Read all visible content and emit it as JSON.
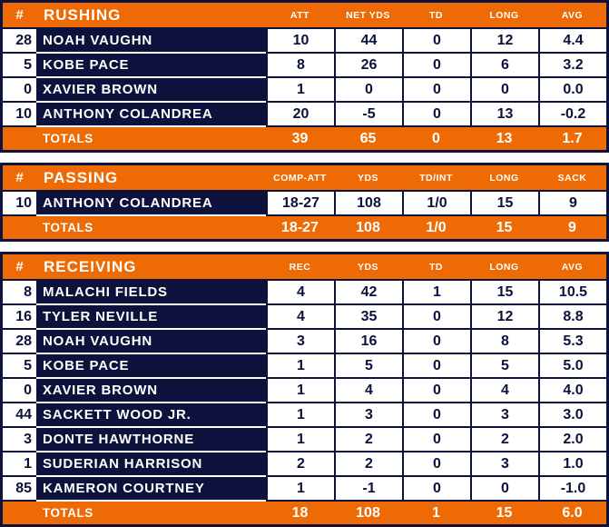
{
  "colors": {
    "accent_orange": "#ED6A05",
    "navy": "#0C123B",
    "cell_white": "#FFFFFF"
  },
  "chart_data": [
    {
      "type": "table",
      "id": "rushing",
      "number_header": "#",
      "title": "RUSHING",
      "columns": [
        "ATT",
        "NET YDS",
        "TD",
        "LONG",
        "AVG"
      ],
      "rows": [
        {
          "number": "28",
          "name": "NOAH VAUGHN",
          "stats": [
            "10",
            "44",
            "0",
            "12",
            "4.4"
          ]
        },
        {
          "number": "5",
          "name": "KOBE PACE",
          "stats": [
            "8",
            "26",
            "0",
            "6",
            "3.2"
          ]
        },
        {
          "number": "0",
          "name": "XAVIER BROWN",
          "stats": [
            "1",
            "0",
            "0",
            "0",
            "0.0"
          ]
        },
        {
          "number": "10",
          "name": "ANTHONY COLANDREA",
          "stats": [
            "20",
            "-5",
            "0",
            "13",
            "-0.2"
          ]
        }
      ],
      "totals": {
        "label": "TOTALS",
        "stats": [
          "39",
          "65",
          "0",
          "13",
          "1.7"
        ]
      }
    },
    {
      "type": "table",
      "id": "passing",
      "number_header": "#",
      "title": "PASSING",
      "columns": [
        "COMP-ATT",
        "YDS",
        "TD/INT",
        "LONG",
        "SACK"
      ],
      "rows": [
        {
          "number": "10",
          "name": "ANTHONY COLANDREA",
          "stats": [
            "18-27",
            "108",
            "1/0",
            "15",
            "9"
          ]
        }
      ],
      "totals": {
        "label": "TOTALS",
        "stats": [
          "18-27",
          "108",
          "1/0",
          "15",
          "9"
        ]
      }
    },
    {
      "type": "table",
      "id": "receiving",
      "number_header": "#",
      "title": "RECEIVING",
      "columns": [
        "REC",
        "YDS",
        "TD",
        "LONG",
        "AVG"
      ],
      "rows": [
        {
          "number": "8",
          "name": "MALACHI FIELDS",
          "stats": [
            "4",
            "42",
            "1",
            "15",
            "10.5"
          ]
        },
        {
          "number": "16",
          "name": "TYLER NEVILLE",
          "stats": [
            "4",
            "35",
            "0",
            "12",
            "8.8"
          ]
        },
        {
          "number": "28",
          "name": "NOAH VAUGHN",
          "stats": [
            "3",
            "16",
            "0",
            "8",
            "5.3"
          ]
        },
        {
          "number": "5",
          "name": "KOBE PACE",
          "stats": [
            "1",
            "5",
            "0",
            "5",
            "5.0"
          ]
        },
        {
          "number": "0",
          "name": "XAVIER BROWN",
          "stats": [
            "1",
            "4",
            "0",
            "4",
            "4.0"
          ]
        },
        {
          "number": "44",
          "name": "SACKETT WOOD JR.",
          "stats": [
            "1",
            "3",
            "0",
            "3",
            "3.0"
          ]
        },
        {
          "number": "3",
          "name": "DONTE HAWTHORNE",
          "stats": [
            "1",
            "2",
            "0",
            "2",
            "2.0"
          ]
        },
        {
          "number": "1",
          "name": "SUDERIAN HARRISON",
          "stats": [
            "2",
            "2",
            "0",
            "3",
            "1.0"
          ]
        },
        {
          "number": "85",
          "name": "KAMERON COURTNEY",
          "stats": [
            "1",
            "-1",
            "0",
            "0",
            "-1.0"
          ]
        }
      ],
      "totals": {
        "label": "TOTALS",
        "stats": [
          "18",
          "108",
          "1",
          "15",
          "6.0"
        ]
      }
    }
  ]
}
